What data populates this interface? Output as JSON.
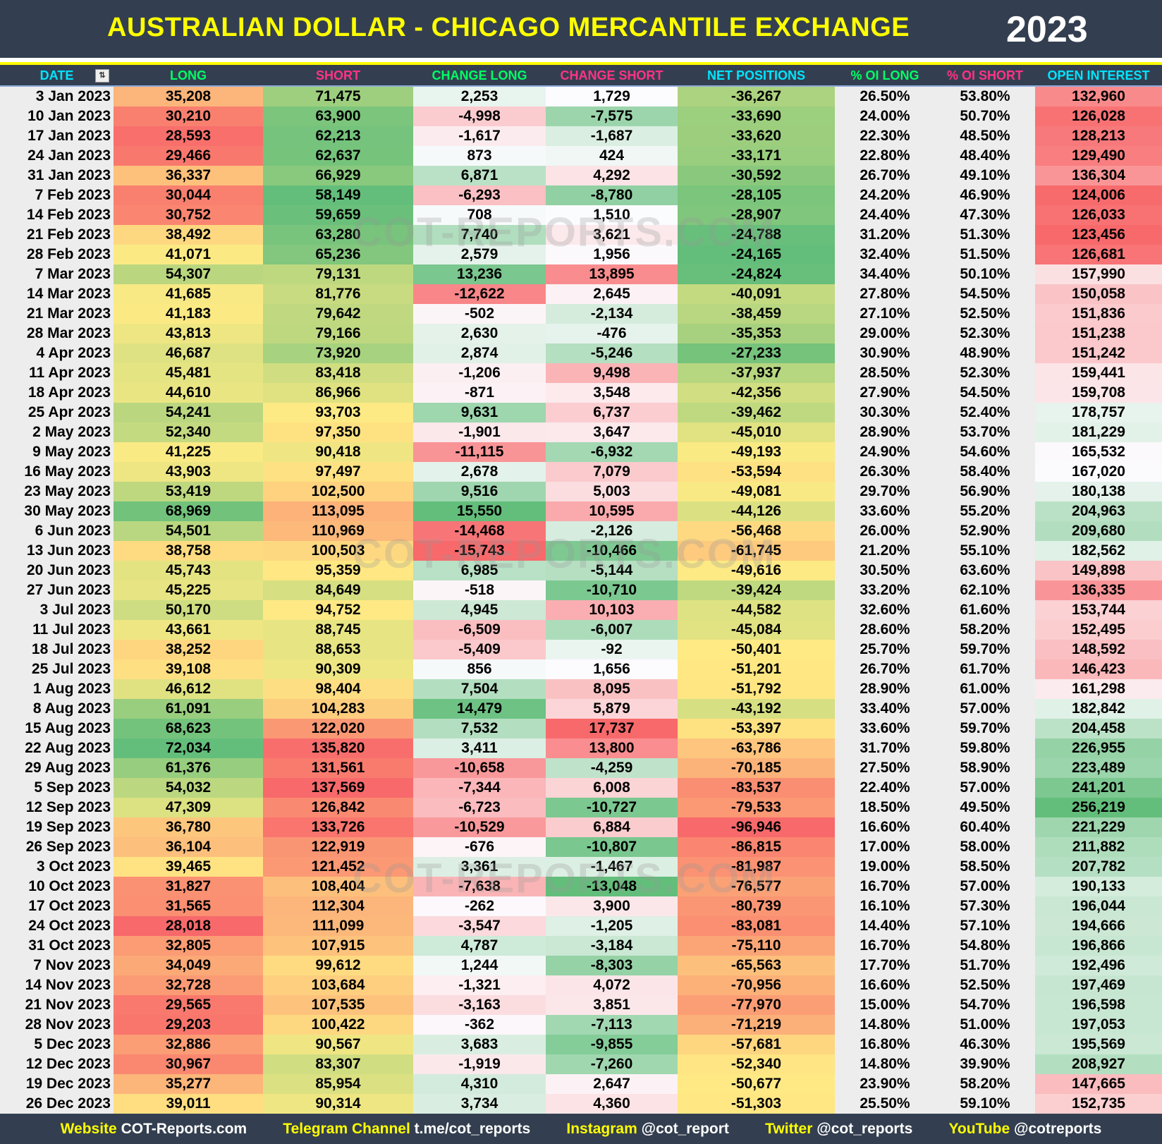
{
  "title": "AUSTRALIAN DOLLAR - CHICAGO MERCANTILE EXCHANGE",
  "year": "2023",
  "watermark": "COT-REPORTS.COM",
  "columns": [
    {
      "label": "DATE",
      "color": "#00e5ff"
    },
    {
      "label": "LONG",
      "color": "#00ff66"
    },
    {
      "label": "SHORT",
      "color": "#ff3385"
    },
    {
      "label": "CHANGE LONG",
      "color": "#00ff66"
    },
    {
      "label": "CHANGE SHORT",
      "color": "#ff3385"
    },
    {
      "label": "NET POSITIONS",
      "color": "#00e5ff"
    },
    {
      "label": "% OI LONG",
      "color": "#00ff66"
    },
    {
      "label": "% OI SHORT",
      "color": "#ff3385"
    },
    {
      "label": "OPEN INTEREST",
      "color": "#00e5ff"
    }
  ],
  "filter_icon": "filter-sort-icon",
  "color_scales": {
    "low_red_high_green": [
      "#f8696b",
      "#ffeb84",
      "#63be7b"
    ],
    "low_green_high_red": [
      "#63be7b",
      "#ffeb84",
      "#f8696b"
    ],
    "change_long": [
      "#f8696b",
      "#fcfcff",
      "#63be7b"
    ],
    "change_short": [
      "#63be7b",
      "#fcfcff",
      "#f8696b"
    ],
    "open_interest": [
      "#f8696b",
      "#fcfcff",
      "#63be7b"
    ]
  },
  "rows": [
    [
      "3 Jan 2023",
      "35,208",
      "71,475",
      "2,253",
      "1,729",
      "-36,267",
      "26.50%",
      "53.80%",
      "132,960"
    ],
    [
      "10 Jan 2023",
      "30,210",
      "63,900",
      "-4,998",
      "-7,575",
      "-33,690",
      "24.00%",
      "50.70%",
      "126,028"
    ],
    [
      "17 Jan 2023",
      "28,593",
      "62,213",
      "-1,617",
      "-1,687",
      "-33,620",
      "22.30%",
      "48.50%",
      "128,213"
    ],
    [
      "24 Jan 2023",
      "29,466",
      "62,637",
      "873",
      "424",
      "-33,171",
      "22.80%",
      "48.40%",
      "129,490"
    ],
    [
      "31 Jan 2023",
      "36,337",
      "66,929",
      "6,871",
      "4,292",
      "-30,592",
      "26.70%",
      "49.10%",
      "136,304"
    ],
    [
      "7 Feb 2023",
      "30,044",
      "58,149",
      "-6,293",
      "-8,780",
      "-28,105",
      "24.20%",
      "46.90%",
      "124,006"
    ],
    [
      "14 Feb 2023",
      "30,752",
      "59,659",
      "708",
      "1,510",
      "-28,907",
      "24.40%",
      "47.30%",
      "126,033"
    ],
    [
      "21 Feb 2023",
      "38,492",
      "63,280",
      "7,740",
      "3,621",
      "-24,788",
      "31.20%",
      "51.30%",
      "123,456"
    ],
    [
      "28 Feb 2023",
      "41,071",
      "65,236",
      "2,579",
      "1,956",
      "-24,165",
      "32.40%",
      "51.50%",
      "126,681"
    ],
    [
      "7 Mar 2023",
      "54,307",
      "79,131",
      "13,236",
      "13,895",
      "-24,824",
      "34.40%",
      "50.10%",
      "157,990"
    ],
    [
      "14 Mar 2023",
      "41,685",
      "81,776",
      "-12,622",
      "2,645",
      "-40,091",
      "27.80%",
      "54.50%",
      "150,058"
    ],
    [
      "21 Mar 2023",
      "41,183",
      "79,642",
      "-502",
      "-2,134",
      "-38,459",
      "27.10%",
      "52.50%",
      "151,836"
    ],
    [
      "28 Mar 2023",
      "43,813",
      "79,166",
      "2,630",
      "-476",
      "-35,353",
      "29.00%",
      "52.30%",
      "151,238"
    ],
    [
      "4 Apr 2023",
      "46,687",
      "73,920",
      "2,874",
      "-5,246",
      "-27,233",
      "30.90%",
      "48.90%",
      "151,242"
    ],
    [
      "11 Apr 2023",
      "45,481",
      "83,418",
      "-1,206",
      "9,498",
      "-37,937",
      "28.50%",
      "52.30%",
      "159,441"
    ],
    [
      "18 Apr 2023",
      "44,610",
      "86,966",
      "-871",
      "3,548",
      "-42,356",
      "27.90%",
      "54.50%",
      "159,708"
    ],
    [
      "25 Apr 2023",
      "54,241",
      "93,703",
      "9,631",
      "6,737",
      "-39,462",
      "30.30%",
      "52.40%",
      "178,757"
    ],
    [
      "2 May 2023",
      "52,340",
      "97,350",
      "-1,901",
      "3,647",
      "-45,010",
      "28.90%",
      "53.70%",
      "181,229"
    ],
    [
      "9 May 2023",
      "41,225",
      "90,418",
      "-11,115",
      "-6,932",
      "-49,193",
      "24.90%",
      "54.60%",
      "165,532"
    ],
    [
      "16 May 2023",
      "43,903",
      "97,497",
      "2,678",
      "7,079",
      "-53,594",
      "26.30%",
      "58.40%",
      "167,020"
    ],
    [
      "23 May 2023",
      "53,419",
      "102,500",
      "9,516",
      "5,003",
      "-49,081",
      "29.70%",
      "56.90%",
      "180,138"
    ],
    [
      "30 May 2023",
      "68,969",
      "113,095",
      "15,550",
      "10,595",
      "-44,126",
      "33.60%",
      "55.20%",
      "204,963"
    ],
    [
      "6 Jun 2023",
      "54,501",
      "110,969",
      "-14,468",
      "-2,126",
      "-56,468",
      "26.00%",
      "52.90%",
      "209,680"
    ],
    [
      "13 Jun 2023",
      "38,758",
      "100,503",
      "-15,743",
      "-10,466",
      "-61,745",
      "21.20%",
      "55.10%",
      "182,562"
    ],
    [
      "20 Jun 2023",
      "45,743",
      "95,359",
      "6,985",
      "-5,144",
      "-49,616",
      "30.50%",
      "63.60%",
      "149,898"
    ],
    [
      "27 Jun 2023",
      "45,225",
      "84,649",
      "-518",
      "-10,710",
      "-39,424",
      "33.20%",
      "62.10%",
      "136,335"
    ],
    [
      "3 Jul 2023",
      "50,170",
      "94,752",
      "4,945",
      "10,103",
      "-44,582",
      "32.60%",
      "61.60%",
      "153,744"
    ],
    [
      "11 Jul 2023",
      "43,661",
      "88,745",
      "-6,509",
      "-6,007",
      "-45,084",
      "28.60%",
      "58.20%",
      "152,495"
    ],
    [
      "18 Jul 2023",
      "38,252",
      "88,653",
      "-5,409",
      "-92",
      "-50,401",
      "25.70%",
      "59.70%",
      "148,592"
    ],
    [
      "25 Jul 2023",
      "39,108",
      "90,309",
      "856",
      "1,656",
      "-51,201",
      "26.70%",
      "61.70%",
      "146,423"
    ],
    [
      "1 Aug 2023",
      "46,612",
      "98,404",
      "7,504",
      "8,095",
      "-51,792",
      "28.90%",
      "61.00%",
      "161,298"
    ],
    [
      "8 Aug 2023",
      "61,091",
      "104,283",
      "14,479",
      "5,879",
      "-43,192",
      "33.40%",
      "57.00%",
      "182,842"
    ],
    [
      "15 Aug 2023",
      "68,623",
      "122,020",
      "7,532",
      "17,737",
      "-53,397",
      "33.60%",
      "59.70%",
      "204,458"
    ],
    [
      "22 Aug 2023",
      "72,034",
      "135,820",
      "3,411",
      "13,800",
      "-63,786",
      "31.70%",
      "59.80%",
      "226,955"
    ],
    [
      "29 Aug 2023",
      "61,376",
      "131,561",
      "-10,658",
      "-4,259",
      "-70,185",
      "27.50%",
      "58.90%",
      "223,489"
    ],
    [
      "5 Sep 2023",
      "54,032",
      "137,569",
      "-7,344",
      "6,008",
      "-83,537",
      "22.40%",
      "57.00%",
      "241,201"
    ],
    [
      "12 Sep 2023",
      "47,309",
      "126,842",
      "-6,723",
      "-10,727",
      "-79,533",
      "18.50%",
      "49.50%",
      "256,219"
    ],
    [
      "19 Sep 2023",
      "36,780",
      "133,726",
      "-10,529",
      "6,884",
      "-96,946",
      "16.60%",
      "60.40%",
      "221,229"
    ],
    [
      "26 Sep 2023",
      "36,104",
      "122,919",
      "-676",
      "-10,807",
      "-86,815",
      "17.00%",
      "58.00%",
      "211,882"
    ],
    [
      "3 Oct 2023",
      "39,465",
      "121,452",
      "3,361",
      "-1,467",
      "-81,987",
      "19.00%",
      "58.50%",
      "207,782"
    ],
    [
      "10 Oct 2023",
      "31,827",
      "108,404",
      "-7,638",
      "-13,048",
      "-76,577",
      "16.70%",
      "57.00%",
      "190,133"
    ],
    [
      "17 Oct 2023",
      "31,565",
      "112,304",
      "-262",
      "3,900",
      "-80,739",
      "16.10%",
      "57.30%",
      "196,044"
    ],
    [
      "24 Oct 2023",
      "28,018",
      "111,099",
      "-3,547",
      "-1,205",
      "-83,081",
      "14.40%",
      "57.10%",
      "194,666"
    ],
    [
      "31 Oct 2023",
      "32,805",
      "107,915",
      "4,787",
      "-3,184",
      "-75,110",
      "16.70%",
      "54.80%",
      "196,866"
    ],
    [
      "7 Nov 2023",
      "34,049",
      "99,612",
      "1,244",
      "-8,303",
      "-65,563",
      "17.70%",
      "51.70%",
      "192,496"
    ],
    [
      "14 Nov 2023",
      "32,728",
      "103,684",
      "-1,321",
      "4,072",
      "-70,956",
      "16.60%",
      "52.50%",
      "197,469"
    ],
    [
      "21 Nov 2023",
      "29,565",
      "107,535",
      "-3,163",
      "3,851",
      "-77,970",
      "15.00%",
      "54.70%",
      "196,598"
    ],
    [
      "28 Nov 2023",
      "29,203",
      "100,422",
      "-362",
      "-7,113",
      "-71,219",
      "14.80%",
      "51.00%",
      "197,053"
    ],
    [
      "5 Dec 2023",
      "32,886",
      "90,567",
      "3,683",
      "-9,855",
      "-57,681",
      "16.80%",
      "46.30%",
      "195,569"
    ],
    [
      "12 Dec 2023",
      "30,967",
      "83,307",
      "-1,919",
      "-7,260",
      "-52,340",
      "14.80%",
      "39.90%",
      "208,927"
    ],
    [
      "19 Dec 2023",
      "35,277",
      "85,954",
      "4,310",
      "2,647",
      "-50,677",
      "23.90%",
      "58.20%",
      "147,665"
    ],
    [
      "26 Dec 2023",
      "39,011",
      "90,314",
      "3,734",
      "4,360",
      "-51,303",
      "25.50%",
      "59.10%",
      "152,735"
    ]
  ],
  "footer": [
    {
      "label": "Website",
      "value": "COT-Reports.com"
    },
    {
      "label": "Telegram Channel",
      "value": "t.me/cot_reports"
    },
    {
      "label": "Instagram",
      "value": "@cot_report"
    },
    {
      "label": "Twitter",
      "value": "@cot_reports"
    },
    {
      "label": "YouTube",
      "value": "@cotreports"
    }
  ]
}
